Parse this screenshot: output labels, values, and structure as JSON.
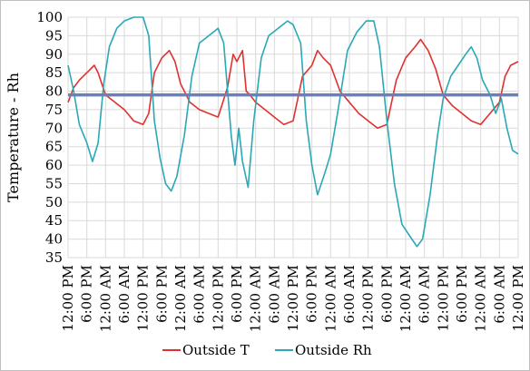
{
  "chart_data": {
    "type": "line",
    "title": "",
    "xlabel": "",
    "ylabel": "Temperature - Rh",
    "ylim": [
      35,
      100
    ],
    "yticks": [
      35,
      40,
      45,
      50,
      55,
      60,
      65,
      70,
      75,
      80,
      85,
      90,
      95,
      100
    ],
    "x_categories": [
      "12:00 PM",
      "6:00 PM",
      "12:00 AM",
      "6:00 AM",
      "12:00 PM",
      "6:00 PM",
      "12:00 AM",
      "6:00 AM",
      "12:00 PM",
      "6:00 PM",
      "12:00 AM",
      "6:00 AM",
      "12:00 PM",
      "6:00 PM",
      "12:00 AM",
      "6:00 AM",
      "12:00 PM",
      "6:00 PM",
      "12:00 AM",
      "6:00 AM",
      "12:00 PM",
      "6:00 PM",
      "12:00 AM",
      "6:00 AM",
      "12:00 PM"
    ],
    "grid": true,
    "legend_position": "bottom",
    "reference_line": {
      "y": 79,
      "color": "#6b80b8"
    },
    "series": [
      {
        "name": "Outside T",
        "color": "#e0312f",
        "points": [
          [
            0,
            77
          ],
          [
            0.3,
            81
          ],
          [
            0.6,
            83
          ],
          [
            1,
            85
          ],
          [
            1.4,
            87
          ],
          [
            1.6,
            85
          ],
          [
            2,
            79
          ],
          [
            2.5,
            77
          ],
          [
            3,
            75
          ],
          [
            3.5,
            72
          ],
          [
            4,
            71
          ],
          [
            4.3,
            74
          ],
          [
            4.6,
            85
          ],
          [
            5,
            89
          ],
          [
            5.4,
            91
          ],
          [
            5.7,
            88
          ],
          [
            6,
            82
          ],
          [
            6.5,
            77
          ],
          [
            7,
            75
          ],
          [
            7.5,
            74
          ],
          [
            8,
            73
          ],
          [
            8.5,
            81
          ],
          [
            8.8,
            90
          ],
          [
            9,
            88
          ],
          [
            9.3,
            91
          ],
          [
            9.5,
            80
          ],
          [
            9.7,
            79
          ],
          [
            10,
            77
          ],
          [
            10.5,
            75
          ],
          [
            11,
            73
          ],
          [
            11.5,
            71
          ],
          [
            12,
            72
          ],
          [
            12.5,
            84
          ],
          [
            13,
            87
          ],
          [
            13.3,
            91
          ],
          [
            13.6,
            89
          ],
          [
            14,
            87
          ],
          [
            14.5,
            80
          ],
          [
            15,
            77
          ],
          [
            15.5,
            74
          ],
          [
            16,
            72
          ],
          [
            16.5,
            70
          ],
          [
            17,
            71
          ],
          [
            17.5,
            83
          ],
          [
            18,
            89
          ],
          [
            18.5,
            92
          ],
          [
            18.8,
            94
          ],
          [
            19.2,
            91
          ],
          [
            19.6,
            86
          ],
          [
            20,
            79
          ],
          [
            20.5,
            76
          ],
          [
            21,
            74
          ],
          [
            21.5,
            72
          ],
          [
            22,
            71
          ],
          [
            22.5,
            74
          ],
          [
            23,
            77
          ],
          [
            23.3,
            84
          ],
          [
            23.6,
            87
          ],
          [
            24,
            88
          ]
        ]
      },
      {
        "name": "Outside Rh",
        "color": "#2aa8b6",
        "points": [
          [
            0,
            87
          ],
          [
            0.3,
            80
          ],
          [
            0.6,
            71
          ],
          [
            1,
            66
          ],
          [
            1.3,
            61
          ],
          [
            1.6,
            66
          ],
          [
            1.9,
            82
          ],
          [
            2.2,
            92
          ],
          [
            2.6,
            97
          ],
          [
            3,
            99
          ],
          [
            3.5,
            100
          ],
          [
            4,
            100
          ],
          [
            4.3,
            95
          ],
          [
            4.6,
            72
          ],
          [
            4.9,
            62
          ],
          [
            5.2,
            55
          ],
          [
            5.5,
            53
          ],
          [
            5.8,
            57
          ],
          [
            6.2,
            68
          ],
          [
            6.6,
            84
          ],
          [
            7,
            93
          ],
          [
            7.5,
            95
          ],
          [
            8,
            97
          ],
          [
            8.3,
            93
          ],
          [
            8.7,
            68
          ],
          [
            8.9,
            60
          ],
          [
            9.1,
            70
          ],
          [
            9.3,
            61
          ],
          [
            9.6,
            54
          ],
          [
            9.9,
            72
          ],
          [
            10.3,
            89
          ],
          [
            10.7,
            95
          ],
          [
            11.2,
            97
          ],
          [
            11.7,
            99
          ],
          [
            12,
            98
          ],
          [
            12.4,
            93
          ],
          [
            12.7,
            72
          ],
          [
            13,
            60
          ],
          [
            13.3,
            52
          ],
          [
            13.7,
            58
          ],
          [
            14,
            63
          ],
          [
            14.4,
            75
          ],
          [
            14.9,
            91
          ],
          [
            15.4,
            96
          ],
          [
            15.9,
            99
          ],
          [
            16.3,
            99
          ],
          [
            16.6,
            92
          ],
          [
            17,
            72
          ],
          [
            17.4,
            55
          ],
          [
            17.8,
            44
          ],
          [
            18.2,
            41
          ],
          [
            18.6,
            38
          ],
          [
            18.9,
            40
          ],
          [
            19.3,
            52
          ],
          [
            19.7,
            68
          ],
          [
            20,
            78
          ],
          [
            20.4,
            84
          ],
          [
            20.8,
            87
          ],
          [
            21.2,
            90
          ],
          [
            21.5,
            92
          ],
          [
            21.8,
            89
          ],
          [
            22.1,
            83
          ],
          [
            22.5,
            79
          ],
          [
            22.8,
            74
          ],
          [
            23.1,
            78
          ],
          [
            23.4,
            70
          ],
          [
            23.7,
            64
          ],
          [
            24,
            63
          ]
        ]
      }
    ]
  }
}
